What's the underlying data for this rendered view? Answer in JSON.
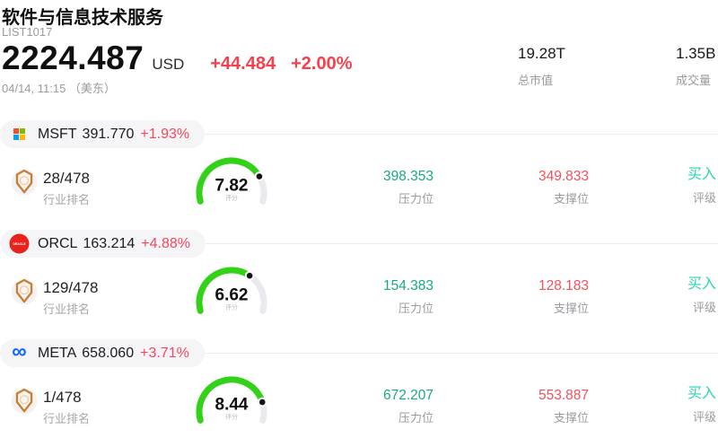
{
  "header": {
    "title": "软件与信息技术服务",
    "code": "LIST1017",
    "price": "2224.487",
    "currency": "USD",
    "change": "+44.484",
    "change_pct": "+2.00%",
    "datetime": "04/14, 11:15 （美东）",
    "market_cap": "19.28T",
    "market_cap_label": "总市值",
    "volume": "1.35B",
    "volume_label": "成交量"
  },
  "labels": {
    "industry_rank": "行业排名",
    "score": "评分",
    "resistance": "压力位",
    "support": "支撑位",
    "rating": "评级"
  },
  "icons": {
    "meta_infinity": "∞",
    "oracle_text": "ORACLE"
  },
  "stocks": [
    {
      "symbol": "MSFT",
      "price": "391.770",
      "change_pct": "+1.93%",
      "rank": "28/478",
      "score": 7.82,
      "resistance": "398.353",
      "support": "349.833",
      "rating": "买入"
    },
    {
      "symbol": "ORCL",
      "price": "163.214",
      "change_pct": "+4.88%",
      "rank": "129/478",
      "score": 6.62,
      "resistance": "154.383",
      "support": "128.183",
      "rating": "买入"
    },
    {
      "symbol": "META",
      "price": "658.060",
      "change_pct": "+3.71%",
      "rank": "1/478",
      "score": 8.44,
      "resistance": "672.207",
      "support": "553.887",
      "rating": "买入"
    }
  ],
  "gauge": {
    "max": 10,
    "start_angle": 195,
    "end_angle": -15
  },
  "colors": {
    "up_red": "#f5404e",
    "resistance_green": "#1aa784",
    "support_red": "#f5505a",
    "rating_teal": "#2dd2b5",
    "gauge_green": "#33d117",
    "gauge_track": "#e9e9ee",
    "msft_logo": [
      "#f25022",
      "#7fba00",
      "#00a4ef",
      "#ffb900"
    ],
    "oracle_red": "#e8231d",
    "meta_blue": "#0866ff",
    "badge_orange": "#c97e35"
  }
}
